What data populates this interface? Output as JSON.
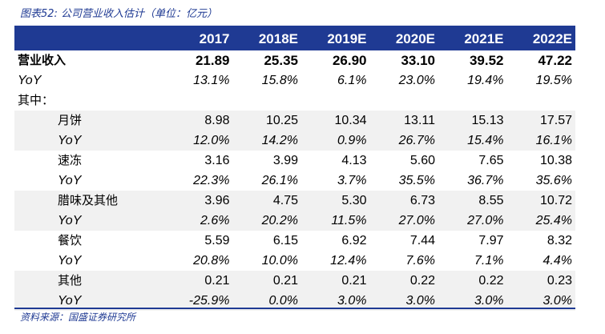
{
  "caption": "图表52: 公司营业收入估计（单位：亿元）",
  "source": "资料来源：国盛证券研究所",
  "header": [
    "2017",
    "2018E",
    "2019E",
    "2020E",
    "2021E",
    "2022E"
  ],
  "rows": [
    {
      "label": "营业收入",
      "values": [
        "21.89",
        "25.35",
        "26.90",
        "33.10",
        "39.52",
        "47.22"
      ]
    },
    {
      "label": "YoY",
      "values": [
        "13.1%",
        "15.8%",
        "6.1%",
        "23.0%",
        "19.4%",
        "19.5%"
      ]
    },
    {
      "label": "其中：",
      "values": [
        "",
        "",
        "",
        "",
        "",
        ""
      ]
    },
    {
      "label": "月饼",
      "values": [
        "8.98",
        "10.25",
        "10.34",
        "13.11",
        "15.13",
        "17.57"
      ]
    },
    {
      "label": "YoY",
      "values": [
        "12.0%",
        "14.2%",
        "0.9%",
        "26.7%",
        "15.4%",
        "16.1%"
      ]
    },
    {
      "label": "速冻",
      "values": [
        "3.16",
        "3.99",
        "4.13",
        "5.60",
        "7.65",
        "10.38"
      ]
    },
    {
      "label": "YoY",
      "values": [
        "22.3%",
        "26.1%",
        "3.7%",
        "35.5%",
        "36.7%",
        "35.6%"
      ]
    },
    {
      "label": "腊味及其他",
      "values": [
        "3.96",
        "4.75",
        "5.30",
        "6.73",
        "8.55",
        "10.72"
      ]
    },
    {
      "label": "YoY",
      "values": [
        "2.6%",
        "20.2%",
        "11.5%",
        "27.0%",
        "27.0%",
        "25.4%"
      ]
    },
    {
      "label": "餐饮",
      "values": [
        "5.59",
        "6.15",
        "6.92",
        "7.44",
        "7.97",
        "8.32"
      ]
    },
    {
      "label": "YoY",
      "values": [
        "20.8%",
        "10.0%",
        "12.4%",
        "7.6%",
        "7.1%",
        "4.4%"
      ]
    },
    {
      "label": "其他",
      "values": [
        "0.21",
        "0.21",
        "0.21",
        "0.22",
        "0.22",
        "0.23"
      ]
    },
    {
      "label": "YoY",
      "values": [
        "-25.9%",
        "0.0%",
        "3.0%",
        "3.0%",
        "3.0%",
        "3.0%"
      ]
    }
  ],
  "colors": {
    "accent": "#1f3a93",
    "shade": "#f1f1f1"
  }
}
